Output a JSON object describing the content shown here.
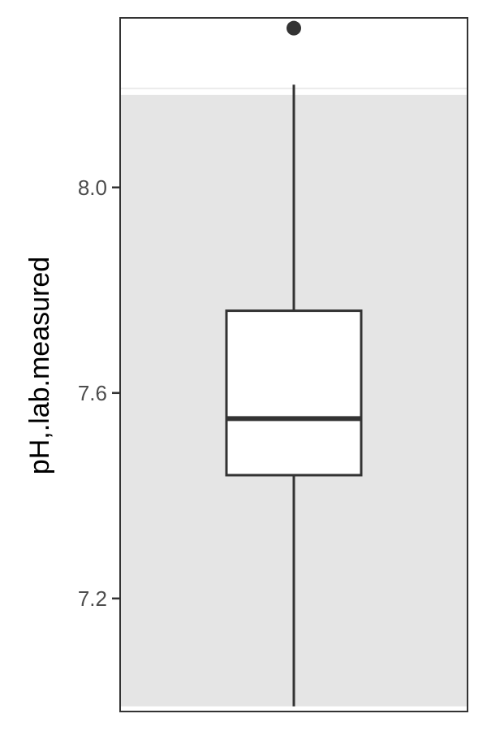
{
  "chart_data": {
    "type": "boxplot",
    "title": "",
    "xlabel": "",
    "ylabel": "pH,.lab.measured",
    "ylim": [
      6.98,
      8.33
    ],
    "yticks": [
      7.2,
      7.6,
      8.0
    ],
    "ytick_labels": [
      "7.2",
      "7.6",
      "8.0"
    ],
    "grid": false,
    "background_band": [
      6.99,
      8.18
    ],
    "box": {
      "min": 6.99,
      "q1": 7.44,
      "median": 7.55,
      "q3": 7.76,
      "max": 8.2,
      "outliers": [
        8.31
      ]
    }
  },
  "colors": {
    "panel_border": "#333333",
    "band_fill": "#e5e5e5",
    "box_stroke": "#333333",
    "box_fill": "#ffffff",
    "tick_text": "#4d4d4d"
  }
}
